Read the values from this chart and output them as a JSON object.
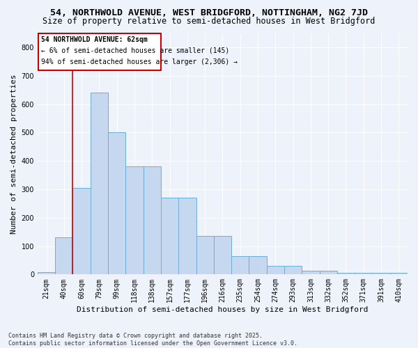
{
  "title": "54, NORTHWOLD AVENUE, WEST BRIDGFORD, NOTTINGHAM, NG2 7JD",
  "subtitle": "Size of property relative to semi-detached houses in West Bridgford",
  "xlabel": "Distribution of semi-detached houses by size in West Bridgford",
  "ylabel": "Number of semi-detached properties",
  "categories": [
    "21sqm",
    "40sqm",
    "60sqm",
    "79sqm",
    "99sqm",
    "118sqm",
    "138sqm",
    "157sqm",
    "177sqm",
    "196sqm",
    "216sqm",
    "235sqm",
    "254sqm",
    "274sqm",
    "293sqm",
    "313sqm",
    "332sqm",
    "352sqm",
    "371sqm",
    "391sqm",
    "410sqm"
  ],
  "values": [
    8,
    130,
    305,
    640,
    500,
    380,
    380,
    270,
    270,
    135,
    135,
    65,
    65,
    30,
    30,
    12,
    12,
    5,
    5,
    5,
    5
  ],
  "bar_color": "#c5d8ef",
  "bar_edge_color": "#6baed6",
  "bg_color": "#eef2fa",
  "grid_color": "#ffffff",
  "vline_color": "#cc0000",
  "vline_pos": 1.5,
  "annotation_title": "54 NORTHWOLD AVENUE: 62sqm",
  "annotation_line1": "← 6% of semi-detached houses are smaller (145)",
  "annotation_line2": "94% of semi-detached houses are larger (2,306) →",
  "annotation_box_color": "#cc0000",
  "annotation_box_fill": "#ffffff",
  "footnote1": "Contains HM Land Registry data © Crown copyright and database right 2025.",
  "footnote2": "Contains public sector information licensed under the Open Government Licence v3.0.",
  "ylim": [
    0,
    850
  ],
  "yticks": [
    0,
    100,
    200,
    300,
    400,
    500,
    600,
    700,
    800
  ],
  "title_fontsize": 9.5,
  "subtitle_fontsize": 8.5,
  "tick_fontsize": 7,
  "ylabel_fontsize": 8,
  "xlabel_fontsize": 8,
  "ann_fontsize": 7,
  "footnote_fontsize": 6
}
